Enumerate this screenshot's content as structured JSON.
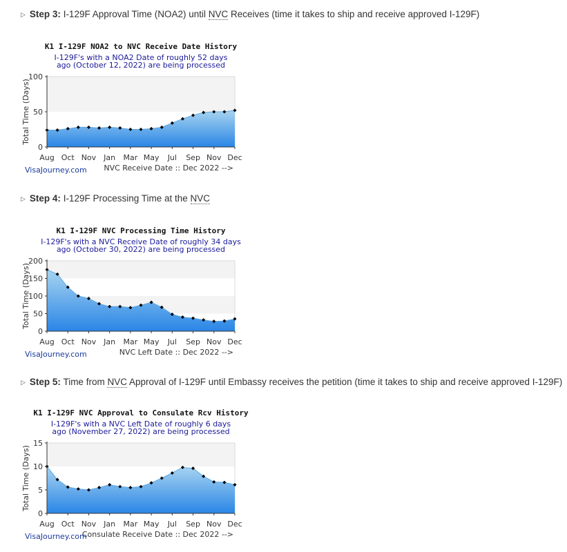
{
  "steps": [
    {
      "label": "Step 3:",
      "pre": " I-129F Approval Time (NOA2) until ",
      "abbr": "NVC",
      "post": " Receives (time it takes to ship and receive approved I-129F)"
    },
    {
      "label": "Step 4:",
      "pre": " I-129F Processing Time at the ",
      "abbr": "NVC",
      "post": ""
    },
    {
      "label": "Step 5:",
      "pre": " Time from ",
      "abbr": "NVC",
      "post": " Approval of I-129F until Embassy receives the petition (time it takes to ship and receive approved I-129F)"
    }
  ],
  "chart_data": [
    {
      "type": "area",
      "title": "K1 I-129F NOA2 to NVC Receive Date History",
      "subtitle_lines": [
        "I-129F's with a NOA2 Date of roughly 52 days",
        "ago (October 12, 2022) are being processed"
      ],
      "ylabel": "Total Time (Days)",
      "xlabel": "NVC Receive Date :: Dec 2022 -->",
      "brand": "VisaJourney.com",
      "x_tick_labels": [
        "Aug",
        "Oct",
        "Nov",
        "Jan",
        "Mar",
        "May",
        "Jul",
        "Sep",
        "Nov",
        "Dec"
      ],
      "y_ticks": [
        0,
        50,
        100
      ],
      "ylim": [
        0,
        100
      ],
      "values": [
        24,
        24,
        26,
        28,
        28,
        27,
        28,
        27,
        25,
        25,
        26,
        28,
        34,
        40,
        45,
        49,
        50,
        50,
        52
      ]
    },
    {
      "type": "area",
      "title": "K1 I-129F NVC Processing Time History",
      "subtitle_lines": [
        "I-129F's with a NVC Receive Date of roughly 34 days",
        "ago (October 30, 2022) are being processed"
      ],
      "ylabel": "Total Time (Days)",
      "xlabel": "NVC Left Date :: Dec 2022 -->",
      "brand": "VisaJourney.com",
      "x_tick_labels": [
        "Aug",
        "Oct",
        "Nov",
        "Jan",
        "Mar",
        "May",
        "Jul",
        "Sep",
        "Nov",
        "Dec"
      ],
      "y_ticks": [
        0,
        50,
        100,
        150,
        200
      ],
      "ylim": [
        0,
        200
      ],
      "values": [
        175,
        162,
        125,
        100,
        93,
        78,
        70,
        70,
        67,
        74,
        82,
        68,
        48,
        40,
        37,
        32,
        28,
        29,
        35
      ]
    },
    {
      "type": "area",
      "title": "K1 I-129F NVC Approval to Consulate Rcv History",
      "subtitle_lines": [
        "I-129F's with a NVC Left Date of roughly 6 days",
        "ago (November 27, 2022) are being processed"
      ],
      "ylabel": "Total Time (Days)",
      "xlabel": "Consulate Receive Date :: Dec 2022 -->",
      "brand": "VisaJourney.com",
      "x_tick_labels": [
        "Aug",
        "Oct",
        "Nov",
        "Jan",
        "Mar",
        "May",
        "Jul",
        "Sep",
        "Nov",
        "Dec"
      ],
      "y_ticks": [
        0,
        5,
        10,
        15
      ],
      "ylim": [
        0,
        15
      ],
      "values": [
        10,
        7.2,
        5.6,
        5.2,
        5.0,
        5.5,
        6.1,
        5.7,
        5.5,
        5.7,
        6.5,
        7.5,
        8.6,
        9.8,
        9.6,
        7.9,
        6.7,
        6.6,
        6.1
      ]
    }
  ],
  "colors": {
    "area_top": "#a8d4f0",
    "area_bottom": "#2a86e6",
    "band": "#f3f3f3",
    "subtitle": "#1a1a9a",
    "brand": "#1a3a9a"
  }
}
